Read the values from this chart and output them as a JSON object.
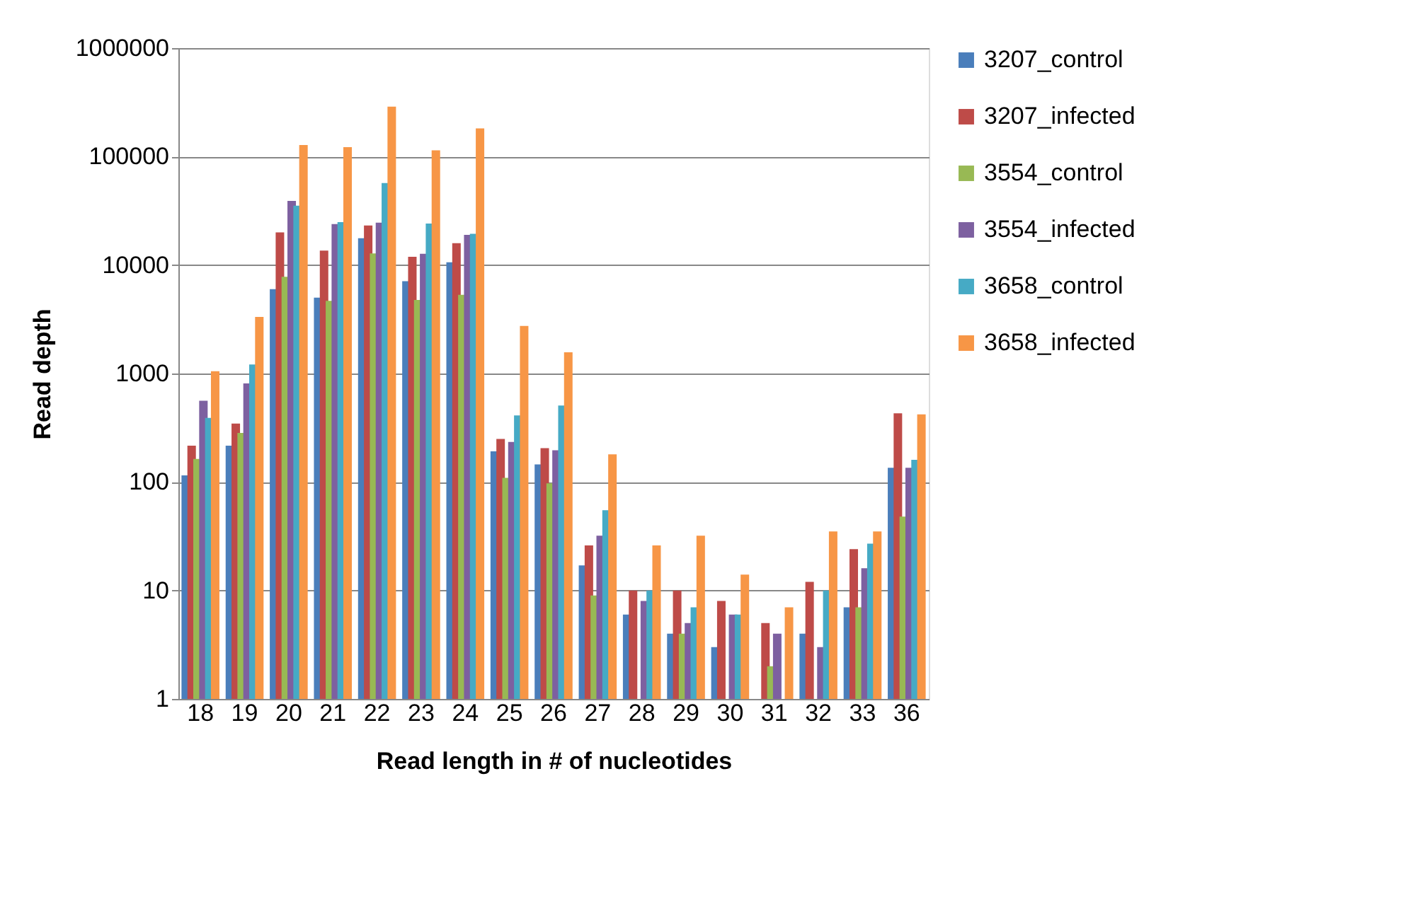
{
  "chart_data": {
    "type": "bar",
    "xlabel": "Read length in # of nucleotides",
    "ylabel": "Read depth",
    "categories": [
      "18",
      "19",
      "20",
      "21",
      "22",
      "23",
      "24",
      "25",
      "26",
      "27",
      "28",
      "29",
      "30",
      "31",
      "32",
      "33",
      "36"
    ],
    "series": [
      {
        "name": "3207_control",
        "color": "#4a7ebb",
        "values": [
          115,
          216,
          6000,
          5000,
          17700,
          7100,
          10600,
          192,
          145,
          17,
          6,
          4,
          3,
          null,
          4,
          7,
          135
        ]
      },
      {
        "name": "3207_infected",
        "color": "#be4b48",
        "values": [
          216,
          346,
          20000,
          13600,
          23200,
          11900,
          15900,
          249,
          205,
          26,
          10,
          10,
          8,
          5,
          12,
          24,
          430
        ]
      },
      {
        "name": "3554_control",
        "color": "#98b954",
        "values": [
          163,
          283,
          7800,
          4680,
          12800,
          4770,
          5320,
          109,
          97,
          9,
          null,
          4,
          null,
          2,
          null,
          7,
          48
        ]
      },
      {
        "name": "3554_infected",
        "color": "#7d60a0",
        "values": [
          560,
          810,
          39000,
          23900,
          24600,
          12700,
          19000,
          234,
          196,
          32,
          8,
          5,
          6,
          4,
          3,
          16,
          135
        ]
      },
      {
        "name": "3658_control",
        "color": "#46aac5",
        "values": [
          390,
          1210,
          35300,
          24900,
          57100,
          24100,
          19400,
          410,
          506,
          55,
          10,
          7,
          6,
          null,
          10,
          27,
          160
        ]
      },
      {
        "name": "3658_infected",
        "color": "#f79646",
        "values": [
          1050,
          3320,
          128000,
          122000,
          289000,
          114000,
          182000,
          2750,
          1570,
          180,
          26,
          32,
          14,
          7,
          35,
          35,
          420
        ]
      }
    ],
    "log": "y",
    "ylim": [
      1,
      1000000
    ],
    "yticks": [
      1,
      10,
      100,
      1000,
      10000,
      100000,
      1000000
    ],
    "grid": "y",
    "legend": "right"
  }
}
